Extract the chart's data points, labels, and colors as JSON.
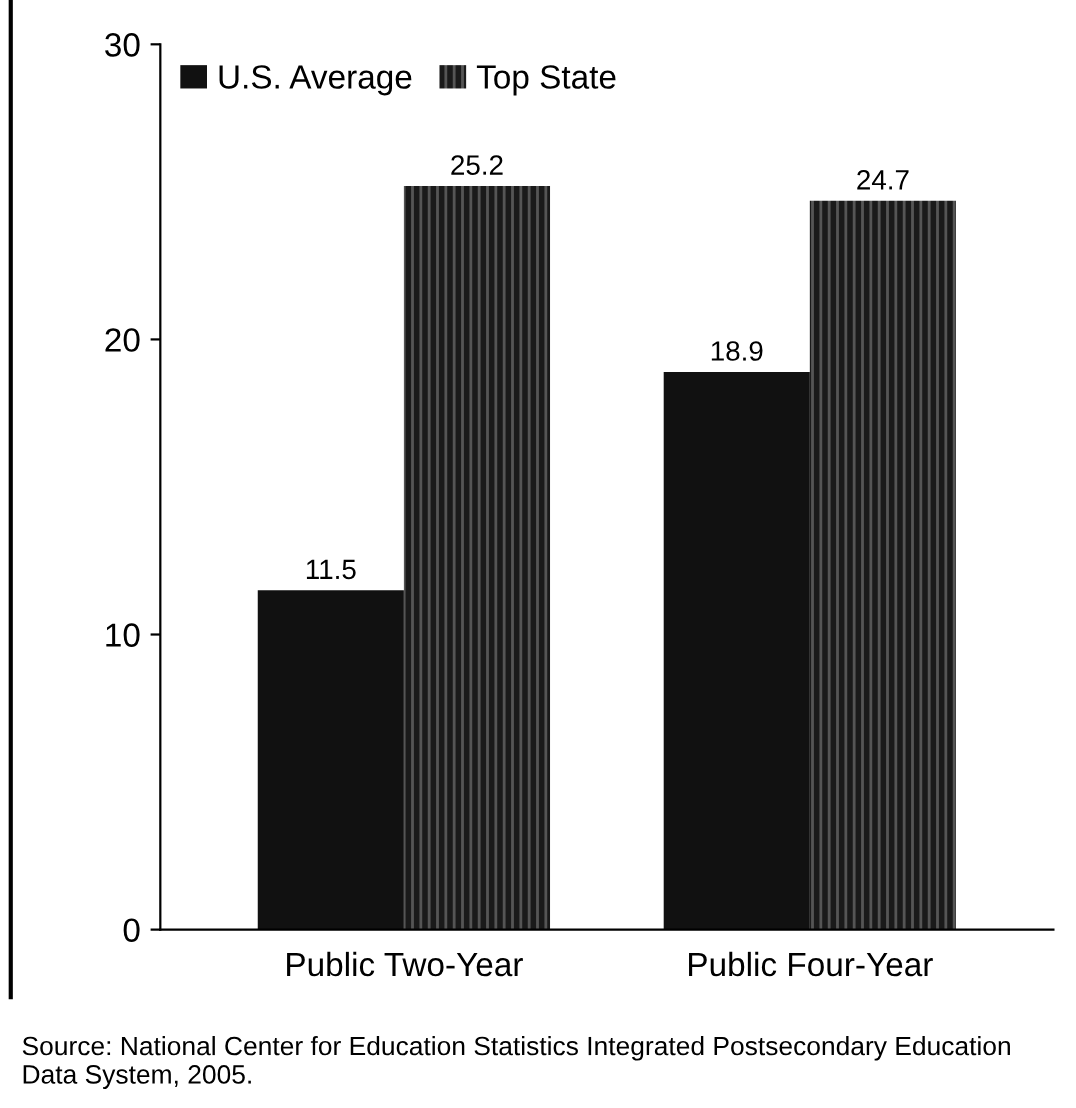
{
  "chart_data": {
    "type": "bar",
    "categories": [
      "Public Two-Year",
      "Public Four-Year"
    ],
    "series": [
      {
        "name": "U.S. Average",
        "color": "#111111",
        "values": [
          11.5,
          18.9
        ]
      },
      {
        "name": "Top State",
        "color": "#1a1a1a",
        "values": [
          25.2,
          24.7
        ]
      }
    ],
    "ylim": [
      0,
      30
    ],
    "yticks": [
      0,
      10,
      20,
      30
    ],
    "grid": false,
    "legend": "top left",
    "data_labels": true,
    "annotations": [
      "Source: National Center for Education Statistics Integrated Postsecondary Education Data System, 2005."
    ]
  }
}
